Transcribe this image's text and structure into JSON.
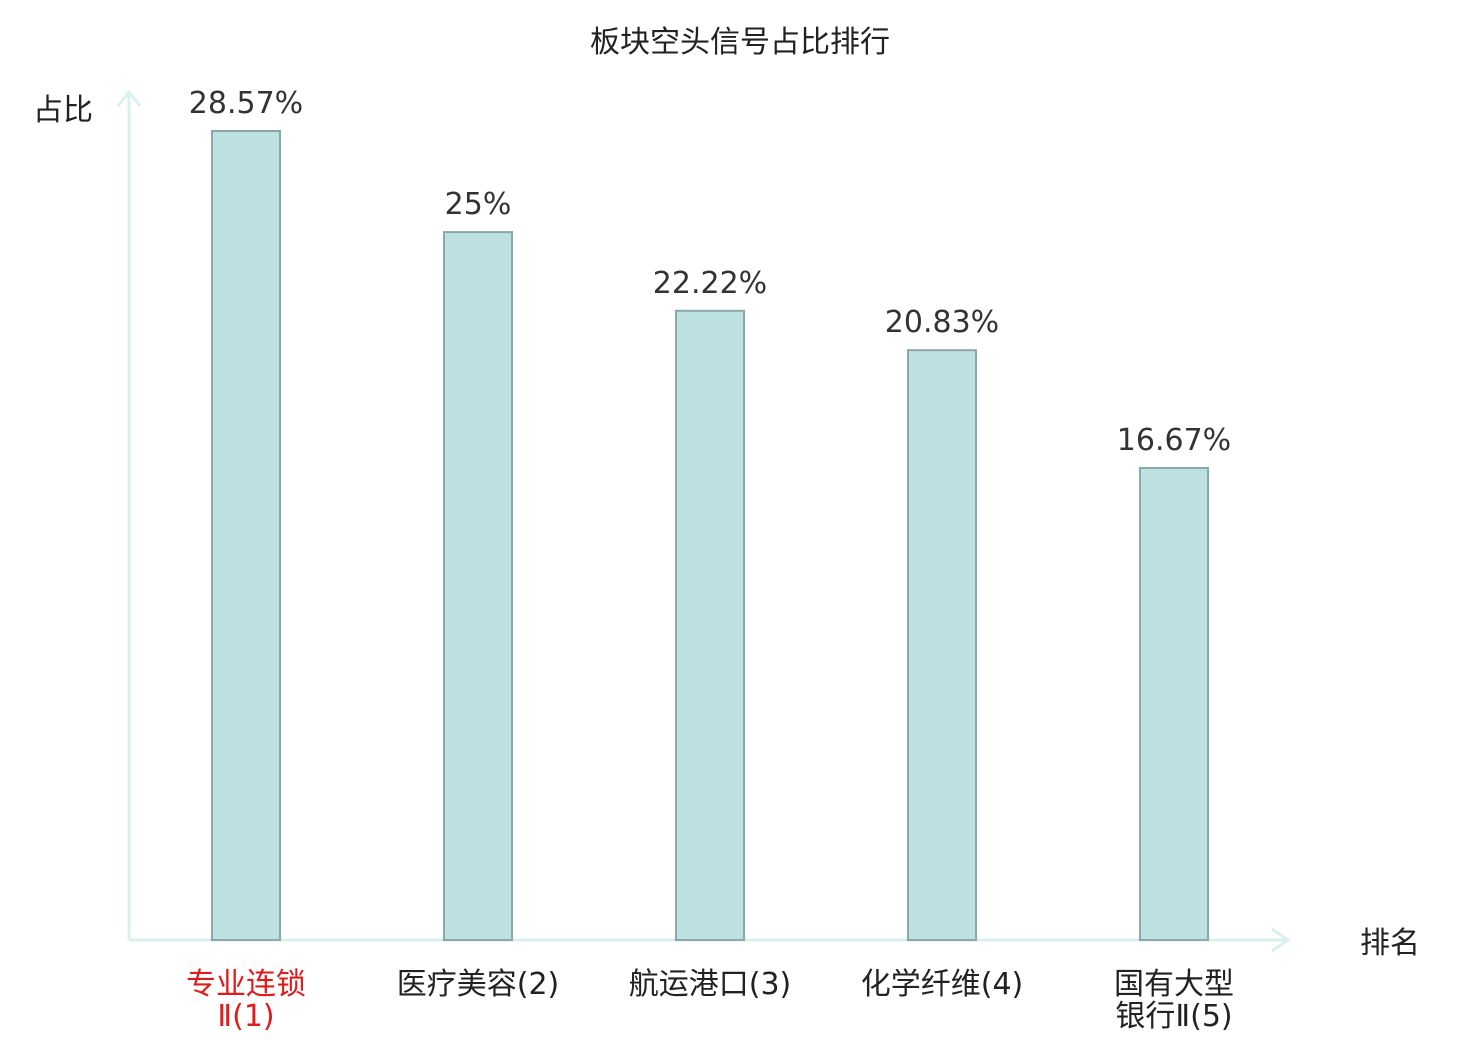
{
  "chart_data": {
    "type": "bar",
    "title": "板块空头信号占比排行",
    "ylabel": "占比",
    "xlabel": "排名",
    "ylim": [
      0,
      30
    ],
    "grid": false,
    "categories": [
      [
        "专业连锁",
        "Ⅱ(1)"
      ],
      [
        "医疗美容(2)"
      ],
      [
        "航运港口(3)"
      ],
      [
        "化学纤维(4)"
      ],
      [
        "国有大型",
        "银行Ⅱ(5)"
      ]
    ],
    "values": [
      28.57,
      25,
      22.22,
      20.83,
      16.67
    ],
    "value_labels": [
      "28.57%",
      "25%",
      "22.22%",
      "20.83%",
      "16.67%"
    ],
    "highlight_index": 0
  },
  "colors": {
    "bar_fill": "#bde0e1",
    "bar_stroke": "#8aa8a9",
    "axis": "#d9f1ee",
    "highlight_label": "#e01b1b",
    "label": "#222222"
  }
}
